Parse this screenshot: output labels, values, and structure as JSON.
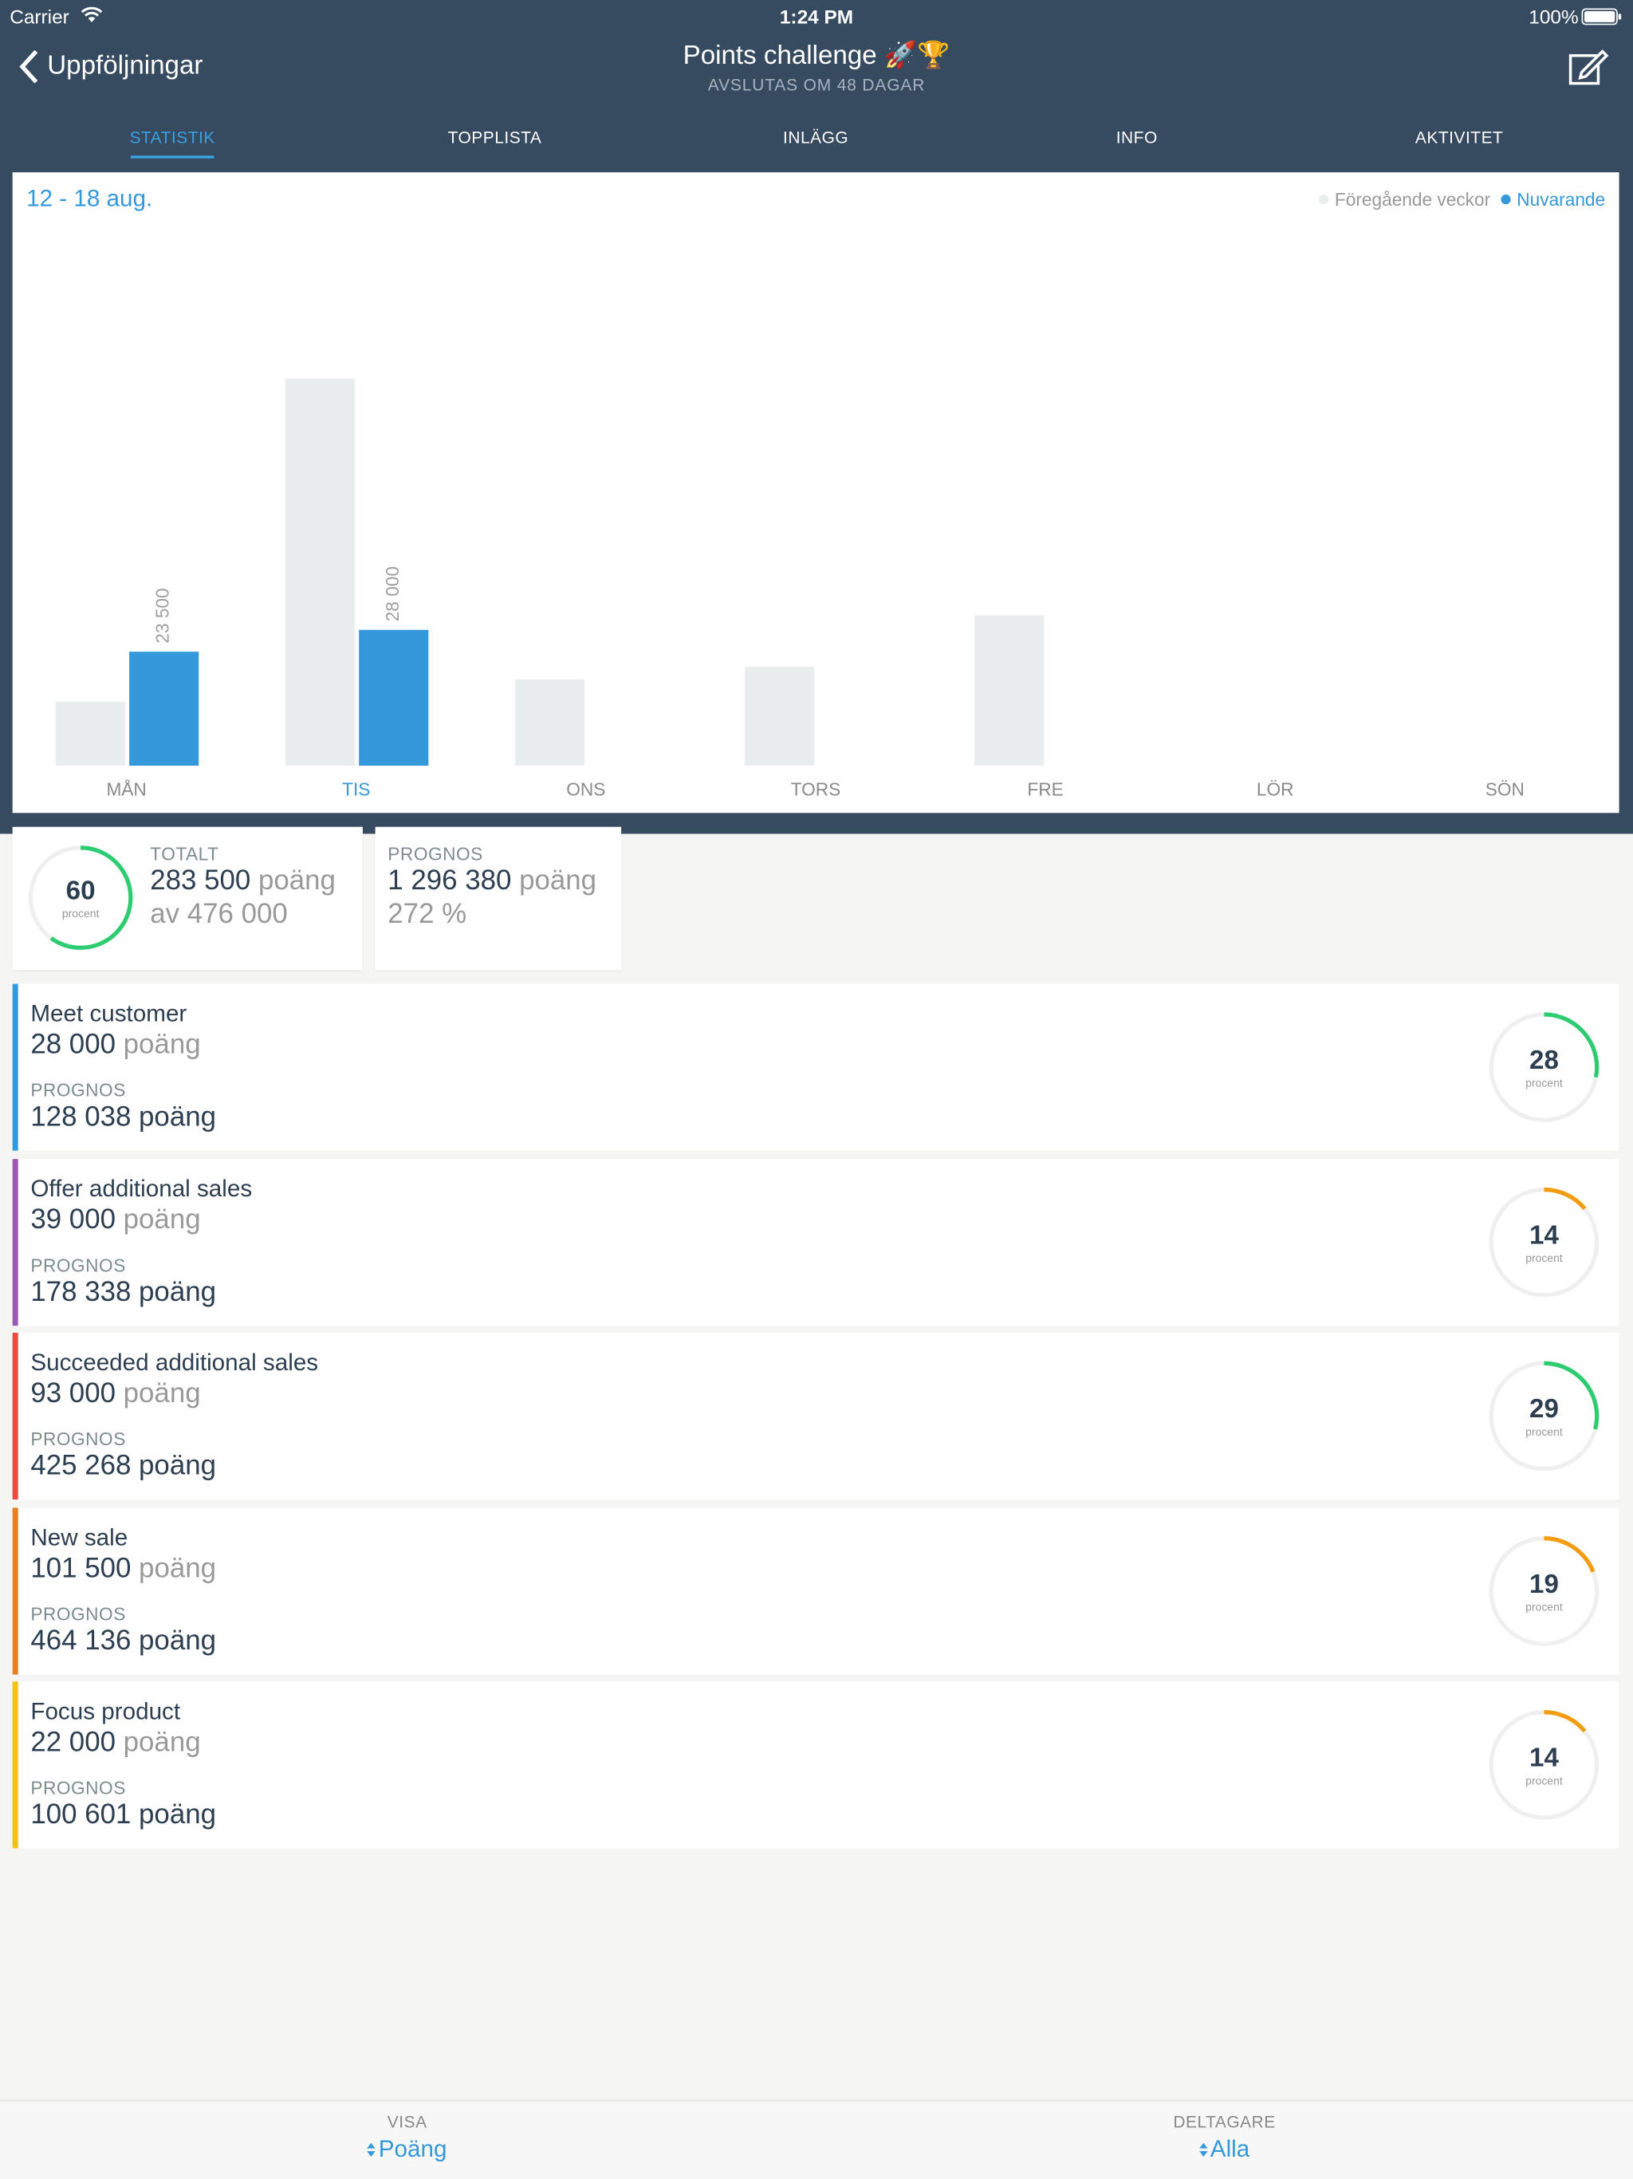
{
  "status_bar": {
    "carrier": "Carrier",
    "time": "1:24 PM",
    "battery": "100%"
  },
  "nav": {
    "back": "Uppföljningar",
    "title": "Points challenge 🚀🏆",
    "subtitle": "AVSLUTAS OM 48 DAGAR"
  },
  "tabs": {
    "items": [
      "STATISTIK",
      "TOPPLISTA",
      "INLÄGG",
      "INFO",
      "AKTIVITET"
    ],
    "active": 0
  },
  "chart_data": {
    "type": "bar",
    "title": "12 - 18 aug.",
    "categories": [
      "MÅN",
      "TIS",
      "ONS",
      "TORS",
      "FRE",
      "LÖR",
      "SÖN"
    ],
    "series": [
      {
        "name": "Föregående veckor",
        "color": "#e9eded",
        "values": [
          13200,
          79800,
          17800,
          20400,
          31000,
          null,
          null
        ]
      },
      {
        "name": "Nuvarande",
        "color": "#3498db",
        "values": [
          23500,
          28000,
          null,
          null,
          null,
          null,
          null
        ],
        "value_labels": [
          "23 500",
          "28 000",
          null,
          null,
          null,
          null,
          null
        ]
      }
    ],
    "ylim": [
      0,
      112000
    ],
    "legend": "top-right",
    "active_category": 1
  },
  "summary": {
    "total": {
      "label": "TOTALT",
      "percent": 60,
      "percent_label": "procent",
      "ring_color": "#2ecc71",
      "points": "283 500",
      "unit": "poäng",
      "of": "av 476 000"
    },
    "forecast": {
      "label": "PROGNOS",
      "points": "1 296 380",
      "unit": "poäng",
      "percent": "272 %"
    }
  },
  "items": [
    {
      "name": "Meet customer",
      "points": "28 000",
      "unit": "poäng",
      "forecast_label": "PROGNOS",
      "forecast": "128 038 poäng",
      "percent": 28,
      "percent_label": "procent",
      "color": "#3498db",
      "ring_color": "#2ecc71"
    },
    {
      "name": "Offer additional sales",
      "points": "39 000",
      "unit": "poäng",
      "forecast_label": "PROGNOS",
      "forecast": "178 338 poäng",
      "percent": 14,
      "percent_label": "procent",
      "color": "#9b59b6",
      "ring_color": "#f39c12"
    },
    {
      "name": "Succeeded additional sales",
      "points": "93 000",
      "unit": "poäng",
      "forecast_label": "PROGNOS",
      "forecast": "425 268 poäng",
      "percent": 29,
      "percent_label": "procent",
      "color": "#e74c3c",
      "ring_color": "#2ecc71"
    },
    {
      "name": "New sale",
      "points": "101 500",
      "unit": "poäng",
      "forecast_label": "PROGNOS",
      "forecast": "464 136 poäng",
      "percent": 19,
      "percent_label": "procent",
      "color": "#e67e22",
      "ring_color": "#f39c12"
    },
    {
      "name": "Focus product",
      "points": "22 000",
      "unit": "poäng",
      "forecast_label": "PROGNOS",
      "forecast": "100 601 poäng",
      "percent": 14,
      "percent_label": "procent",
      "color": "#f1c40f",
      "ring_color": "#f39c12"
    }
  ],
  "footer": [
    {
      "label": "VISA",
      "value": "Poäng"
    },
    {
      "label": "DELTAGARE",
      "value": "Alla"
    }
  ]
}
